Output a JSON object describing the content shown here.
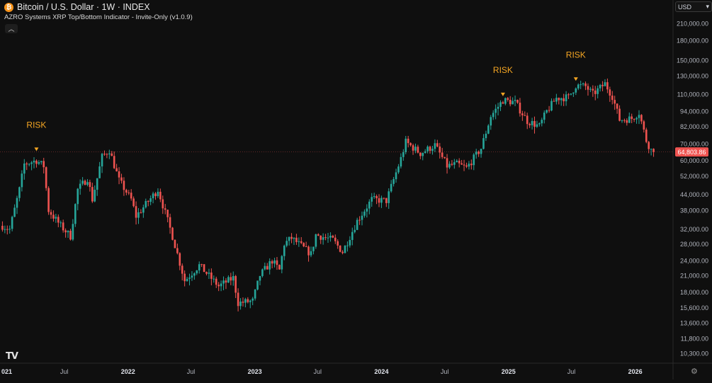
{
  "header": {
    "symbol": "Bitcoin / U.S. Dollar · 1W · INDEX",
    "indicator": "AZRO Systems XRP Top/Bottom Indicator - Invite-Only (v1.0.9)",
    "currency": "USD"
  },
  "icons": {
    "btc": "bitcoin-icon",
    "collapse": "chevron-up-icon",
    "dropdown": "chevron-down-icon",
    "logo": "tradingview-logo",
    "settings": "gear-icon"
  },
  "colors": {
    "background": "#0f0f0f",
    "up": "#26a69a",
    "down": "#ef5350",
    "signal": "#f5a623",
    "last_price_bg": "#ef5350"
  },
  "chart_data": {
    "type": "candlestick",
    "title": "",
    "xlabel": "",
    "ylabel": "",
    "y_scale": "log",
    "ylim": [
      9400,
      260000
    ],
    "grid": false,
    "last_price": "64,803.86",
    "last_price_value": 64803.86,
    "y_ticks": [
      {
        "value": 210000,
        "label": "210,000.00"
      },
      {
        "value": 180000,
        "label": "180,000.00"
      },
      {
        "value": 150000,
        "label": "150,000.00"
      },
      {
        "value": 130000,
        "label": "130,000.00"
      },
      {
        "value": 110000,
        "label": "110,000.00"
      },
      {
        "value": 94000,
        "label": "94,000.00"
      },
      {
        "value": 82000,
        "label": "82,000.00"
      },
      {
        "value": 70000,
        "label": "70,000.00"
      },
      {
        "value": 60000,
        "label": "60,000.00"
      },
      {
        "value": 52000,
        "label": "52,000.00"
      },
      {
        "value": 44000,
        "label": "44,000.00"
      },
      {
        "value": 38000,
        "label": "38,000.00"
      },
      {
        "value": 32000,
        "label": "32,000.00"
      },
      {
        "value": 28000,
        "label": "28,000.00"
      },
      {
        "value": 24000,
        "label": "24,000.00"
      },
      {
        "value": 21000,
        "label": "21,000.00"
      },
      {
        "value": 18000,
        "label": "18,000.00"
      },
      {
        "value": 15600,
        "label": "15,600.00"
      },
      {
        "value": 13600,
        "label": "13,600.00"
      },
      {
        "value": 11800,
        "label": "11,800.00"
      },
      {
        "value": 10300,
        "label": "10,300.00"
      }
    ],
    "x_ticks": [
      {
        "date": "2021-01-01",
        "label": "021",
        "bold": true
      },
      {
        "date": "2021-07-01",
        "label": "Jul",
        "bold": false
      },
      {
        "date": "2022-01-01",
        "label": "2022",
        "bold": true
      },
      {
        "date": "2022-07-01",
        "label": "Jul",
        "bold": false
      },
      {
        "date": "2023-01-01",
        "label": "2023",
        "bold": true
      },
      {
        "date": "2023-07-01",
        "label": "Jul",
        "bold": false
      },
      {
        "date": "2024-01-01",
        "label": "2024",
        "bold": true
      },
      {
        "date": "2024-07-01",
        "label": "Jul",
        "bold": false
      },
      {
        "date": "2025-01-01",
        "label": "2025",
        "bold": true
      },
      {
        "date": "2025-07-01",
        "label": "Jul",
        "bold": false
      },
      {
        "date": "2026-01-01",
        "label": "2026",
        "bold": true
      }
    ],
    "xlim": [
      "2020-12-28",
      "2026-04-20"
    ],
    "signals": [
      {
        "date": "2021-04-12",
        "value": 64500,
        "label": "RISK"
      },
      {
        "date": "2024-12-16",
        "value": 106500,
        "label": "RISK"
      },
      {
        "date": "2025-07-14",
        "value": 122500,
        "label": "RISK"
      }
    ],
    "path": [
      {
        "date": "2021-01-04",
        "value": 33000
      },
      {
        "date": "2021-01-25",
        "value": 32000
      },
      {
        "date": "2021-02-22",
        "value": 46000
      },
      {
        "date": "2021-03-08",
        "value": 58000
      },
      {
        "date": "2021-04-12",
        "value": 60000
      },
      {
        "date": "2021-05-03",
        "value": 57000
      },
      {
        "date": "2021-05-17",
        "value": 38000
      },
      {
        "date": "2021-06-21",
        "value": 33000
      },
      {
        "date": "2021-07-19",
        "value": 30000
      },
      {
        "date": "2021-08-09",
        "value": 46000
      },
      {
        "date": "2021-09-06",
        "value": 51000
      },
      {
        "date": "2021-09-20",
        "value": 42000
      },
      {
        "date": "2021-10-18",
        "value": 62000
      },
      {
        "date": "2021-11-08",
        "value": 66000
      },
      {
        "date": "2021-12-06",
        "value": 50000
      },
      {
        "date": "2022-01-10",
        "value": 42000
      },
      {
        "date": "2022-01-24",
        "value": 36000
      },
      {
        "date": "2022-03-28",
        "value": 46000
      },
      {
        "date": "2022-05-09",
        "value": 30000
      },
      {
        "date": "2022-06-13",
        "value": 20000
      },
      {
        "date": "2022-07-25",
        "value": 23000
      },
      {
        "date": "2022-09-19",
        "value": 19000
      },
      {
        "date": "2022-10-31",
        "value": 20500
      },
      {
        "date": "2022-11-14",
        "value": 16300
      },
      {
        "date": "2022-12-26",
        "value": 16600
      },
      {
        "date": "2023-01-16",
        "value": 21000
      },
      {
        "date": "2023-02-20",
        "value": 24000
      },
      {
        "date": "2023-03-13",
        "value": 22000
      },
      {
        "date": "2023-03-27",
        "value": 28000
      },
      {
        "date": "2023-04-17",
        "value": 29500
      },
      {
        "date": "2023-06-12",
        "value": 25500
      },
      {
        "date": "2023-06-26",
        "value": 30400
      },
      {
        "date": "2023-08-14",
        "value": 29000
      },
      {
        "date": "2023-09-11",
        "value": 26000
      },
      {
        "date": "2023-10-23",
        "value": 34500
      },
      {
        "date": "2023-12-04",
        "value": 42000
      },
      {
        "date": "2024-01-15",
        "value": 41500
      },
      {
        "date": "2024-02-26",
        "value": 61000
      },
      {
        "date": "2024-03-11",
        "value": 71000
      },
      {
        "date": "2024-04-22",
        "value": 64000
      },
      {
        "date": "2024-06-03",
        "value": 69000
      },
      {
        "date": "2024-07-08",
        "value": 57000
      },
      {
        "date": "2024-08-05",
        "value": 58000
      },
      {
        "date": "2024-09-02",
        "value": 56000
      },
      {
        "date": "2024-10-14",
        "value": 67000
      },
      {
        "date": "2024-11-11",
        "value": 90000
      },
      {
        "date": "2024-12-16",
        "value": 104000
      },
      {
        "date": "2025-01-20",
        "value": 102000
      },
      {
        "date": "2025-02-24",
        "value": 86000
      },
      {
        "date": "2025-03-31",
        "value": 82000
      },
      {
        "date": "2025-04-21",
        "value": 94000
      },
      {
        "date": "2025-05-19",
        "value": 106000
      },
      {
        "date": "2025-06-23",
        "value": 107000
      },
      {
        "date": "2025-07-14",
        "value": 119000
      },
      {
        "date": "2025-08-11",
        "value": 118000
      },
      {
        "date": "2025-09-01",
        "value": 110000
      },
      {
        "date": "2025-10-06",
        "value": 121000
      },
      {
        "date": "2025-10-27",
        "value": 108000
      },
      {
        "date": "2025-11-17",
        "value": 87000
      },
      {
        "date": "2025-12-22",
        "value": 88000
      },
      {
        "date": "2026-01-12",
        "value": 93000
      },
      {
        "date": "2026-02-02",
        "value": 72000
      },
      {
        "date": "2026-02-16",
        "value": 66000
      },
      {
        "date": "2026-02-23",
        "value": 64803.86
      }
    ]
  }
}
